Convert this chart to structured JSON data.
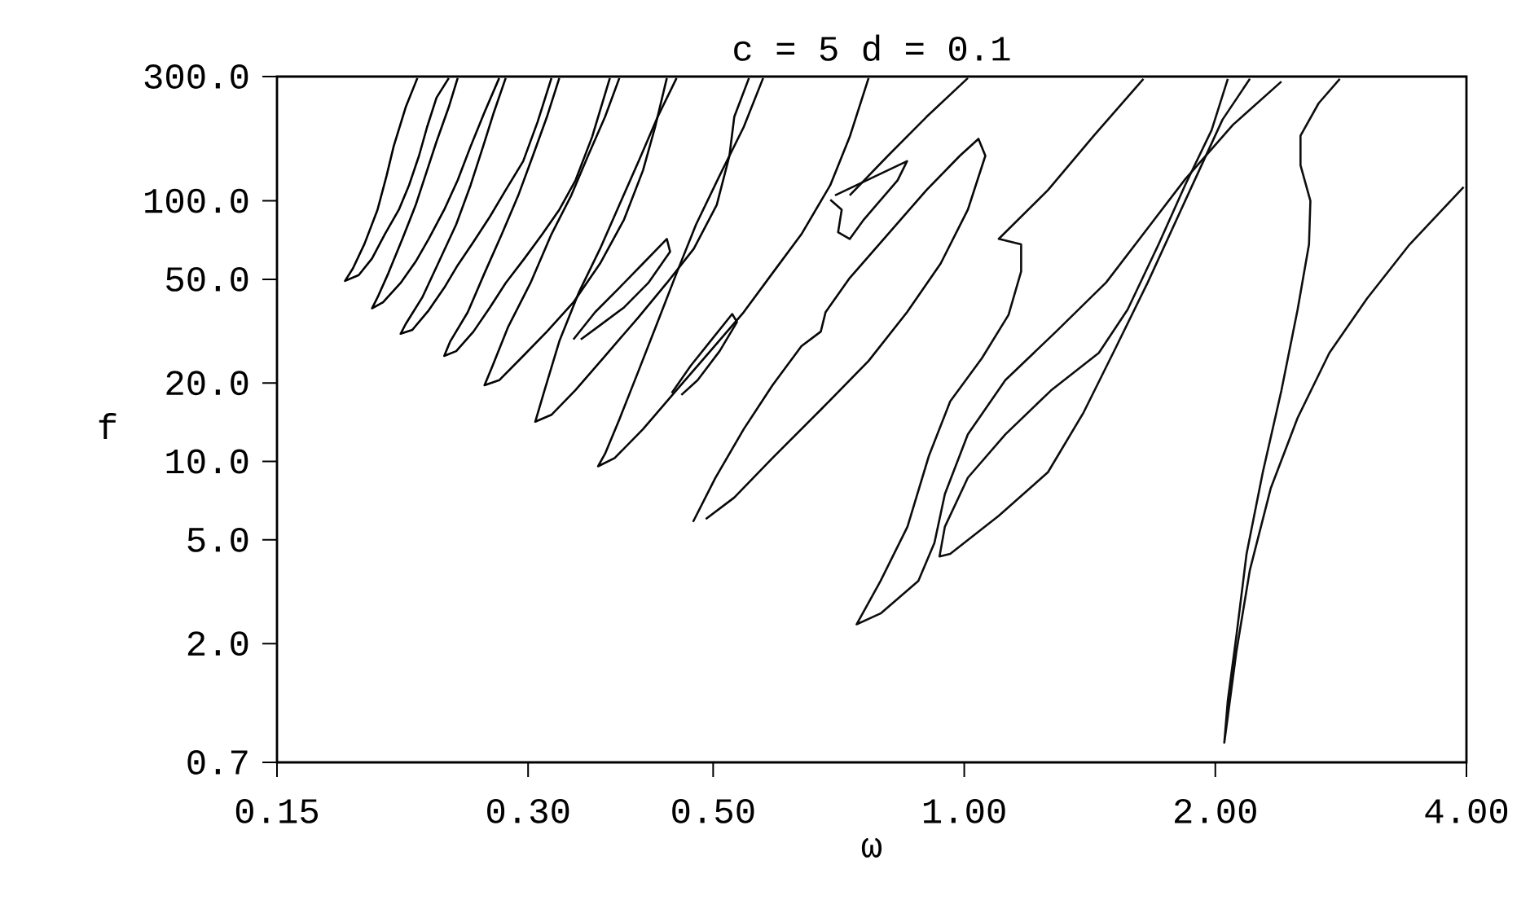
{
  "chart_data": {
    "type": "line",
    "title": "c = 5      d = 0.1",
    "xlabel": "ω",
    "ylabel": "f",
    "log": "xy",
    "xlim": [
      0.15,
      4
    ],
    "ylim": [
      0.7,
      300
    ],
    "xticks": [
      {
        "value": 0.15,
        "label": "0.15"
      },
      {
        "value": 0.3,
        "label": "0.30"
      },
      {
        "value": 0.5,
        "label": "0.50"
      },
      {
        "value": 1,
        "label": "1.00"
      },
      {
        "value": 2,
        "label": "2.00"
      },
      {
        "value": 4,
        "label": "4.00"
      }
    ],
    "yticks": [
      {
        "value": 0.7,
        "label": "0.7"
      },
      {
        "value": 2,
        "label": "2.0"
      },
      {
        "value": 5,
        "label": "5.0"
      },
      {
        "value": 10,
        "label": "10.0"
      },
      {
        "value": 20,
        "label": "20.0"
      },
      {
        "value": 50,
        "label": "50.0"
      },
      {
        "value": 100,
        "label": "100.0"
      },
      {
        "value": 300,
        "label": "300.0"
      }
    ],
    "series": [
      {
        "color": "#000000",
        "x": [
          0.221,
          0.214,
          0.207,
          0.203,
          0.198,
          0.191,
          0.185,
          0.181,
          0.188,
          0.195,
          0.202,
          0.21,
          0.216,
          0.222,
          0.227,
          0.233,
          0.241
        ],
        "values": [
          296,
          229,
          162,
          125,
          92.5,
          68.4,
          55.1,
          49.3,
          51.9,
          60.1,
          74.5,
          92.5,
          115,
          149,
          192,
          249,
          296
        ]
      },
      {
        "color": "#010101",
        "x": [
          0.247,
          0.241,
          0.233,
          0.227,
          0.22,
          0.212,
          0.204,
          0.198,
          0.195,
          0.201,
          0.211,
          0.22,
          0.228,
          0.238,
          0.247,
          0.256,
          0.266,
          0.277
        ],
        "values": [
          296,
          229,
          169,
          131,
          96.5,
          71.4,
          52.8,
          42.6,
          38.7,
          40.8,
          48.4,
          58.5,
          71.4,
          92.5,
          120,
          162,
          219,
          296
        ]
      },
      {
        "color": "#020202",
        "x": [
          0.282,
          0.273,
          0.265,
          0.256,
          0.246,
          0.234,
          0.224,
          0.214,
          0.211,
          0.218,
          0.228,
          0.238,
          0.247,
          0.258,
          0.27,
          0.282,
          0.296,
          0.308,
          0.32
        ],
        "values": [
          296,
          219,
          162,
          115,
          81.2,
          57.5,
          42.6,
          33.7,
          30.9,
          32,
          38,
          46.4,
          56.6,
          69.6,
          87,
          110,
          142,
          201,
          296
        ]
      },
      {
        "color": "#030303",
        "x": [
          0.327,
          0.316,
          0.304,
          0.292,
          0.279,
          0.266,
          0.254,
          0.242,
          0.238,
          0.246,
          0.258,
          0.27,
          0.282,
          0.297,
          0.312,
          0.327,
          0.342,
          0.358,
          0.376
        ],
        "values": [
          296,
          210,
          149,
          105,
          74.5,
          52.8,
          37.4,
          28.9,
          25.4,
          26.5,
          31.5,
          39,
          48.4,
          60.1,
          74.5,
          92.5,
          120,
          176,
          296
        ]
      },
      {
        "color": "#040404",
        "x": [
          0.386,
          0.371,
          0.354,
          0.338,
          0.32,
          0.302,
          0.284,
          0.272,
          0.266,
          0.277,
          0.296,
          0.316,
          0.34,
          0.366,
          0.391,
          0.412,
          0.426,
          0.44
        ],
        "values": [
          296,
          210,
          149,
          105,
          74.5,
          48.4,
          32.9,
          23.3,
          19.6,
          20.5,
          25.4,
          31.5,
          40.8,
          57.5,
          84.8,
          131,
          192,
          296
        ]
      },
      {
        "color": "#050505",
        "x": [
          0.452,
          0.429,
          0.407,
          0.386,
          0.366,
          0.345,
          0.327,
          0.314,
          0.306,
          0.32,
          0.342,
          0.371,
          0.407,
          0.44,
          0.474,
          0.505,
          0.523,
          0.53,
          0.552
        ],
        "values": [
          296,
          210,
          142,
          96.5,
          65.5,
          44.4,
          28.9,
          18.8,
          14.2,
          15.1,
          18.8,
          25.4,
          35.8,
          48.4,
          65.5,
          96.5,
          149,
          210,
          296
        ]
      },
      {
        "color": "#060606",
        "x": [
          0.574,
          0.544,
          0.509,
          0.477,
          0.452,
          0.429,
          0.407,
          0.386,
          0.371,
          0.364,
          0.381,
          0.412,
          0.452,
          0.496,
          0.544,
          0.589,
          0.638,
          0.691,
          0.729,
          0.768
        ],
        "values": [
          296,
          192,
          125,
          81.2,
          52.8,
          34.3,
          22.3,
          14.5,
          10.7,
          9.58,
          10.3,
          13.3,
          18.8,
          26.5,
          37.4,
          52.8,
          74.5,
          115,
          176,
          296
        ]
      },
      {
        "color": "#070707",
        "x": [
          0.473,
          0.503,
          0.544,
          0.589,
          0.638,
          0.673,
          0.682,
          0.729,
          0.81,
          0.901,
          0.988,
          1.04,
          1.06,
          1.01,
          0.937,
          0.854,
          0.768,
          0.673,
          0.589,
          0.53,
          0.49
        ],
        "values": [
          5.86,
          8.64,
          13.3,
          19.6,
          27.7,
          31.5,
          37.4,
          50.6,
          74.5,
          110,
          149,
          173,
          149,
          92.5,
          57.5,
          37.4,
          24.3,
          15.8,
          10.3,
          7.27,
          6.01
        ]
      },
      {
        "color": "#080808",
        "x": [
          0.34,
          0.361,
          0.386,
          0.412,
          0.44,
          0.444,
          0.418,
          0.391,
          0.364,
          0.347
        ],
        "values": [
          29.4,
          37.4,
          46.4,
          57.5,
          71.4,
          63.8,
          48.4,
          39,
          32.9,
          29.4
        ]
      },
      {
        "color": "#090909",
        "x": [
          0.446,
          0.47,
          0.496,
          0.527,
          0.534,
          0.509,
          0.479,
          0.458
        ],
        "values": [
          18.3,
          23.3,
          28.9,
          36.8,
          34.3,
          26.5,
          20.5,
          18
        ]
      },
      {
        "color": "#0a0a0a",
        "x": [
          0.7,
          0.854,
          0.832,
          0.758,
          0.729,
          0.706,
          0.713,
          0.691
        ],
        "values": [
          105,
          142,
          120,
          84.8,
          71.4,
          75.8,
          92.5,
          101
        ]
      },
      {
        "color": "#0b0b0b",
        "x": [
          1.01,
          0.901,
          0.81,
          0.729
        ],
        "values": [
          296,
          210,
          149,
          105
        ]
      },
      {
        "color": "#0c0c0c",
        "x": [
          1.64,
          1.43,
          1.26,
          1.1,
          1.17,
          1.17,
          1.13,
          1.05,
          0.962,
          0.907,
          0.855,
          0.794,
          0.743,
          0.794,
          0.881,
          0.921,
          0.948,
          1.01,
          1.12,
          1.29,
          1.48,
          1.66,
          1.84,
          2.1,
          2.4
        ],
        "values": [
          294,
          178,
          110,
          71.5,
          68.1,
          53.6,
          36.5,
          24.9,
          17,
          10.5,
          5.62,
          3.48,
          2.37,
          2.61,
          3.48,
          4.87,
          7.5,
          12.7,
          20.5,
          31.6,
          48.7,
          78.7,
          121,
          196,
          287
        ]
      },
      {
        "color": "#0d0d0d",
        "x": [
          2.07,
          1.98,
          1.84,
          1.71,
          1.57,
          1.45,
          1.27,
          1.12,
          1.01,
          0.948,
          0.934,
          0.962,
          1.1,
          1.26,
          1.39,
          1.52,
          1.66,
          1.84,
          2.04,
          2.2
        ],
        "values": [
          294,
          187,
          115,
          68.1,
          38.3,
          26.1,
          18.7,
          12.7,
          8.66,
          5.62,
          4.32,
          4.42,
          6.19,
          9.09,
          15.4,
          27.4,
          48.7,
          100,
          205,
          294
        ]
      },
      {
        "color": "#0e0e0e",
        "x": [
          2.82,
          2.66,
          2.53,
          2.53,
          2.6,
          2.59,
          2.51,
          2.4,
          2.28,
          2.18,
          2.12,
          2.07,
          2.05,
          2.07,
          2.12,
          2.2,
          2.33,
          2.51,
          2.74,
          3.04,
          3.42,
          3.97
        ],
        "values": [
          294,
          237,
          178,
          137,
          100,
          68.1,
          38.3,
          18.7,
          9.09,
          4.42,
          2.15,
          1.21,
          0.833,
          1.05,
          1.87,
          3.83,
          7.87,
          14.7,
          26.1,
          42.2,
          68.1,
          113
        ]
      }
    ]
  }
}
